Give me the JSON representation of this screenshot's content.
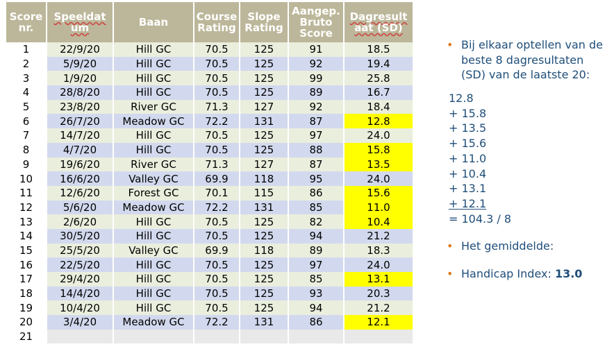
{
  "table": {
    "headers": [
      {
        "lines": [
          "Score",
          "nr."
        ],
        "spell": false
      },
      {
        "lines": [
          "Speeldat",
          "um"
        ],
        "spell": true
      },
      {
        "lines": [
          "Baan"
        ],
        "spell": false
      },
      {
        "lines": [
          "Course",
          "Rating"
        ],
        "spell": false
      },
      {
        "lines": [
          "Slope",
          "Rating"
        ],
        "spell": false
      },
      {
        "lines": [
          "Aangep.",
          "Bruto",
          "Score"
        ],
        "spell": false
      },
      {
        "lines": [
          "Dagresult",
          "aat (SD)"
        ],
        "spell": true
      }
    ],
    "rows": [
      {
        "nr": "1",
        "date": "22/9/20",
        "course": "Hill GC",
        "rating": "70.5",
        "slope": "125",
        "score": "91",
        "sd": "18.5",
        "best": false
      },
      {
        "nr": "2",
        "date": "5/9/20",
        "course": "Hill GC",
        "rating": "70.5",
        "slope": "125",
        "score": "92",
        "sd": "19.4",
        "best": false
      },
      {
        "nr": "3",
        "date": "1/9/20",
        "course": "Hill GC",
        "rating": "70.5",
        "slope": "125",
        "score": "99",
        "sd": "25.8",
        "best": false
      },
      {
        "nr": "4",
        "date": "28/8/20",
        "course": "Hill GC",
        "rating": "70.5",
        "slope": "125",
        "score": "89",
        "sd": "16.7",
        "best": false
      },
      {
        "nr": "5",
        "date": "23/8/20",
        "course": "River GC",
        "rating": "71.3",
        "slope": "127",
        "score": "92",
        "sd": "18.4",
        "best": false
      },
      {
        "nr": "6",
        "date": "26/7/20",
        "course": "Meadow GC",
        "rating": "72.2",
        "slope": "131",
        "score": "87",
        "sd": "12.8",
        "best": true
      },
      {
        "nr": "7",
        "date": "14/7/20",
        "course": "Hill GC",
        "rating": "70.5",
        "slope": "125",
        "score": "97",
        "sd": "24.0",
        "best": false
      },
      {
        "nr": "8",
        "date": "4/7/20",
        "course": "Hill GC",
        "rating": "70.5",
        "slope": "125",
        "score": "88",
        "sd": "15.8",
        "best": true
      },
      {
        "nr": "9",
        "date": "19/6/20",
        "course": "River GC",
        "rating": "71.3",
        "slope": "127",
        "score": "87",
        "sd": "13.5",
        "best": true
      },
      {
        "nr": "10",
        "date": "16/6/20",
        "course": "Valley GC",
        "rating": "69.9",
        "slope": "118",
        "score": "95",
        "sd": "24.0",
        "best": false
      },
      {
        "nr": "11",
        "date": "12/6/20",
        "course": "Forest GC",
        "rating": "70.1",
        "slope": "115",
        "score": "86",
        "sd": "15.6",
        "best": true
      },
      {
        "nr": "12",
        "date": "5/6/20",
        "course": "Meadow GC",
        "rating": "72.2",
        "slope": "131",
        "score": "85",
        "sd": "11.0",
        "best": true
      },
      {
        "nr": "13",
        "date": "2/6/20",
        "course": "Hill GC",
        "rating": "70.5",
        "slope": "125",
        "score": "82",
        "sd": "10.4",
        "best": true
      },
      {
        "nr": "14",
        "date": "30/5/20",
        "course": "Hill GC",
        "rating": "70.5",
        "slope": "125",
        "score": "94",
        "sd": "21.2",
        "best": false
      },
      {
        "nr": "15",
        "date": "25/5/20",
        "course": "Valley GC",
        "rating": "69.9",
        "slope": "118",
        "score": "89",
        "sd": "18.3",
        "best": false
      },
      {
        "nr": "16",
        "date": "22/5/20",
        "course": "Hill GC",
        "rating": "70.5",
        "slope": "125",
        "score": "97",
        "sd": "24.0",
        "best": false
      },
      {
        "nr": "17",
        "date": "29/4/20",
        "course": "Hill GC",
        "rating": "70.5",
        "slope": "125",
        "score": "85",
        "sd": "13.1",
        "best": true
      },
      {
        "nr": "18",
        "date": "14/4/20",
        "course": "Hill GC",
        "rating": "70.5",
        "slope": "125",
        "score": "93",
        "sd": "20.3",
        "best": false
      },
      {
        "nr": "19",
        "date": "10/4/20",
        "course": "Hill GC",
        "rating": "70.5",
        "slope": "125",
        "score": "94",
        "sd": "21.2",
        "best": false
      },
      {
        "nr": "20",
        "date": "3/4/20",
        "course": "Meadow GC",
        "rating": "72.2",
        "slope": "131",
        "score": "86",
        "sd": "12.1",
        "best": true
      },
      {
        "nr": "21",
        "date": "",
        "course": "",
        "rating": "",
        "slope": "",
        "score": "",
        "sd": "",
        "best": false
      }
    ]
  },
  "notes": {
    "intro": "Bij elkaar optellen van de beste 8 dagresultaten (SD) van de laatste 20:",
    "sum_lines": [
      "12.8",
      "+ 15.8",
      "+ 13.5",
      "+ 15.6",
      "+ 11.0",
      "+ 10.4",
      "+ 13.1",
      "+ 12.1"
    ],
    "total": "= 104.3 / 8",
    "average_label": "Het gemiddelde:",
    "handicap_label": "Handicap Index:",
    "handicap_value": "13.0"
  },
  "colors": {
    "header": "#bcb79a",
    "row_odd": "#eaeedd",
    "row_even": "#d2d9ee",
    "highlight": "#ffff00",
    "text_blue": "#1f4e79",
    "bullet": "#e07a1f"
  }
}
